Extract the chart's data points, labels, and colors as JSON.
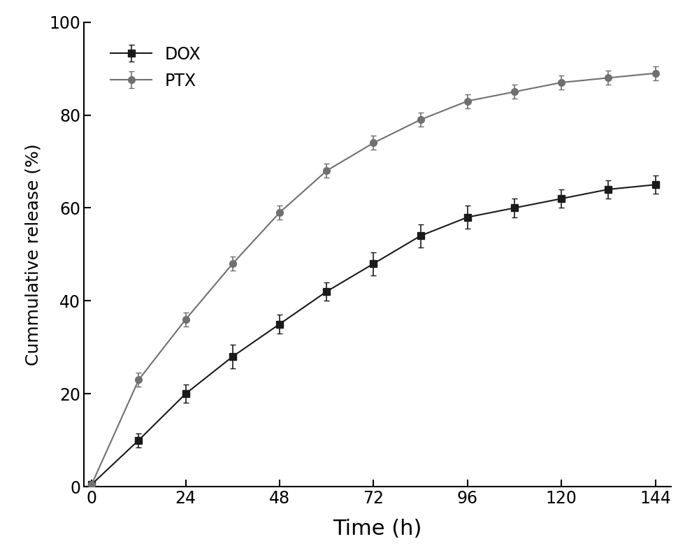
{
  "title": "",
  "xlabel": "Time (h)",
  "ylabel": "Cummulative release (%)",
  "xlim": [
    -2,
    148
  ],
  "ylim": [
    0,
    100
  ],
  "xticks": [
    0,
    24,
    48,
    72,
    96,
    120,
    144
  ],
  "yticks": [
    0,
    20,
    40,
    60,
    80,
    100
  ],
  "DOX_x": [
    0,
    12,
    24,
    36,
    48,
    60,
    72,
    84,
    96,
    108,
    120,
    132,
    144
  ],
  "DOX_y": [
    0.5,
    10,
    20,
    28,
    35,
    42,
    48,
    54,
    58,
    60,
    62,
    64,
    65
  ],
  "DOX_yerr": [
    0.5,
    1.5,
    2.0,
    2.5,
    2.0,
    2.0,
    2.5,
    2.5,
    2.5,
    2.0,
    2.0,
    2.0,
    2.0
  ],
  "PTX_x": [
    0,
    12,
    24,
    36,
    48,
    60,
    72,
    84,
    96,
    108,
    120,
    132,
    144
  ],
  "PTX_y": [
    0.5,
    23,
    36,
    48,
    59,
    68,
    74,
    79,
    83,
    85,
    87,
    88,
    89
  ],
  "PTX_yerr": [
    0.5,
    1.5,
    1.5,
    1.5,
    1.5,
    1.5,
    1.5,
    1.5,
    1.5,
    1.5,
    1.5,
    1.5,
    1.5
  ],
  "DOX_color": "#1a1a1a",
  "PTX_color": "#707070",
  "legend_labels": [
    "DOX",
    "PTX"
  ],
  "marker_size": 7,
  "line_width": 1.5,
  "capsize": 3,
  "elinewidth": 1.2,
  "xlabel_fontsize": 22,
  "ylabel_fontsize": 18,
  "tick_labelsize": 17,
  "legend_fontsize": 17
}
